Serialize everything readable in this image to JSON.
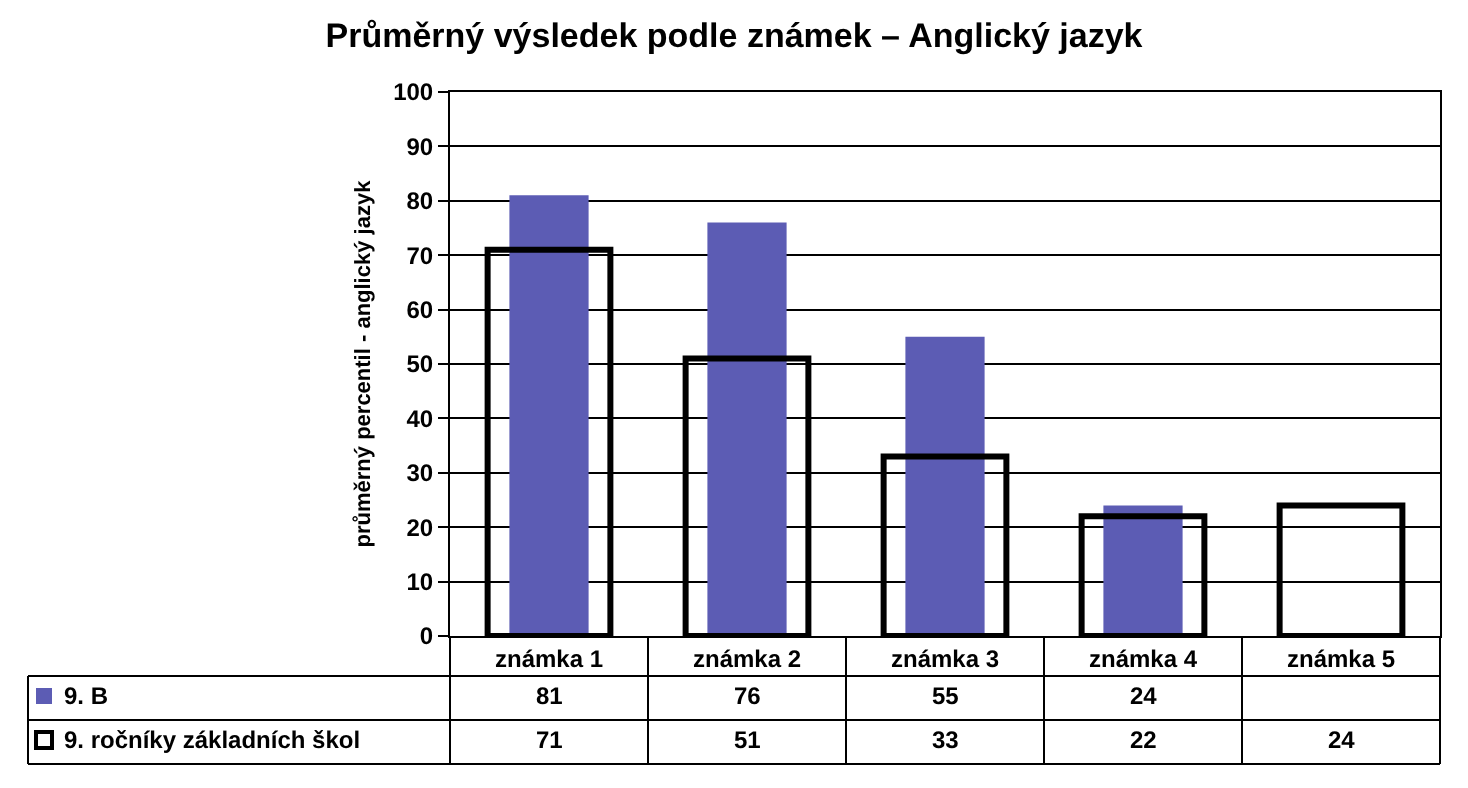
{
  "chart_data": {
    "type": "bar",
    "title": "Průměrný výsledek podle známek – Anglický jazyk",
    "ylabel": "průměrný percentil - anglický jazyk",
    "categories": [
      "známka 1",
      "známka 2",
      "známka 3",
      "známka 4",
      "známka 5"
    ],
    "series": [
      {
        "name": "9. B",
        "color": "#5c5cb4",
        "values": [
          81,
          76,
          55,
          24,
          null
        ]
      },
      {
        "name": "9. ročníky základních škol",
        "color": "#000000",
        "values": [
          71,
          51,
          33,
          22,
          24
        ]
      }
    ],
    "ylim": [
      0,
      100
    ],
    "yticks": [
      0,
      10,
      20,
      30,
      40,
      50,
      60,
      70,
      80,
      90,
      100
    ],
    "grid": "y",
    "legend": "bottom left",
    "data_labels": true
  }
}
